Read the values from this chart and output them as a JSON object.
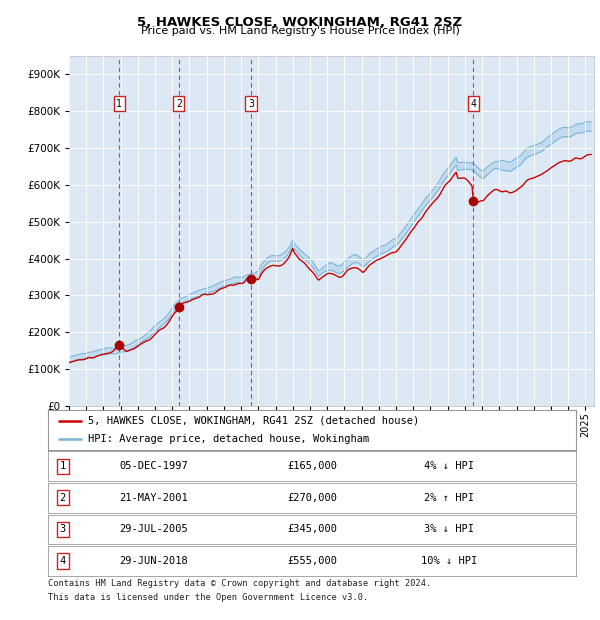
{
  "title1": "5, HAWKES CLOSE, WOKINGHAM, RG41 2SZ",
  "title2": "Price paid vs. HM Land Registry's House Price Index (HPI)",
  "background_color": "#dce9f5",
  "hpi_color": "#7ab4d8",
  "hpi_fill_color": "#a8cce8",
  "price_color": "#cc0000",
  "sale_marker_color": "#aa0000",
  "dashed_line_color": "#cc3333",
  "sales": [
    {
      "label": "1",
      "date_x": 1997.92,
      "price": 165000
    },
    {
      "label": "2",
      "date_x": 2001.38,
      "price": 270000
    },
    {
      "label": "3",
      "date_x": 2005.57,
      "price": 345000
    },
    {
      "label": "4",
      "date_x": 2018.49,
      "price": 555000
    }
  ],
  "sale_dates_text": [
    "05-DEC-1997",
    "21-MAY-2001",
    "29-JUL-2005",
    "29-JUN-2018"
  ],
  "sale_prices_text": [
    "£165,000",
    "£270,000",
    "£345,000",
    "£555,000"
  ],
  "sale_hpi_text": [
    "4% ↓ HPI",
    "2% ↑ HPI",
    "3% ↓ HPI",
    "10% ↓ HPI"
  ],
  "legend_line1": "5, HAWKES CLOSE, WOKINGHAM, RG41 2SZ (detached house)",
  "legend_line2": "HPI: Average price, detached house, Wokingham",
  "footnote1": "Contains HM Land Registry data © Crown copyright and database right 2024.",
  "footnote2": "This data is licensed under the Open Government Licence v3.0.",
  "xmin": 1995.0,
  "xmax": 2025.5,
  "ymin": 0,
  "ymax": 950000,
  "yticks": [
    0,
    100000,
    200000,
    300000,
    400000,
    500000,
    600000,
    700000,
    800000,
    900000
  ]
}
